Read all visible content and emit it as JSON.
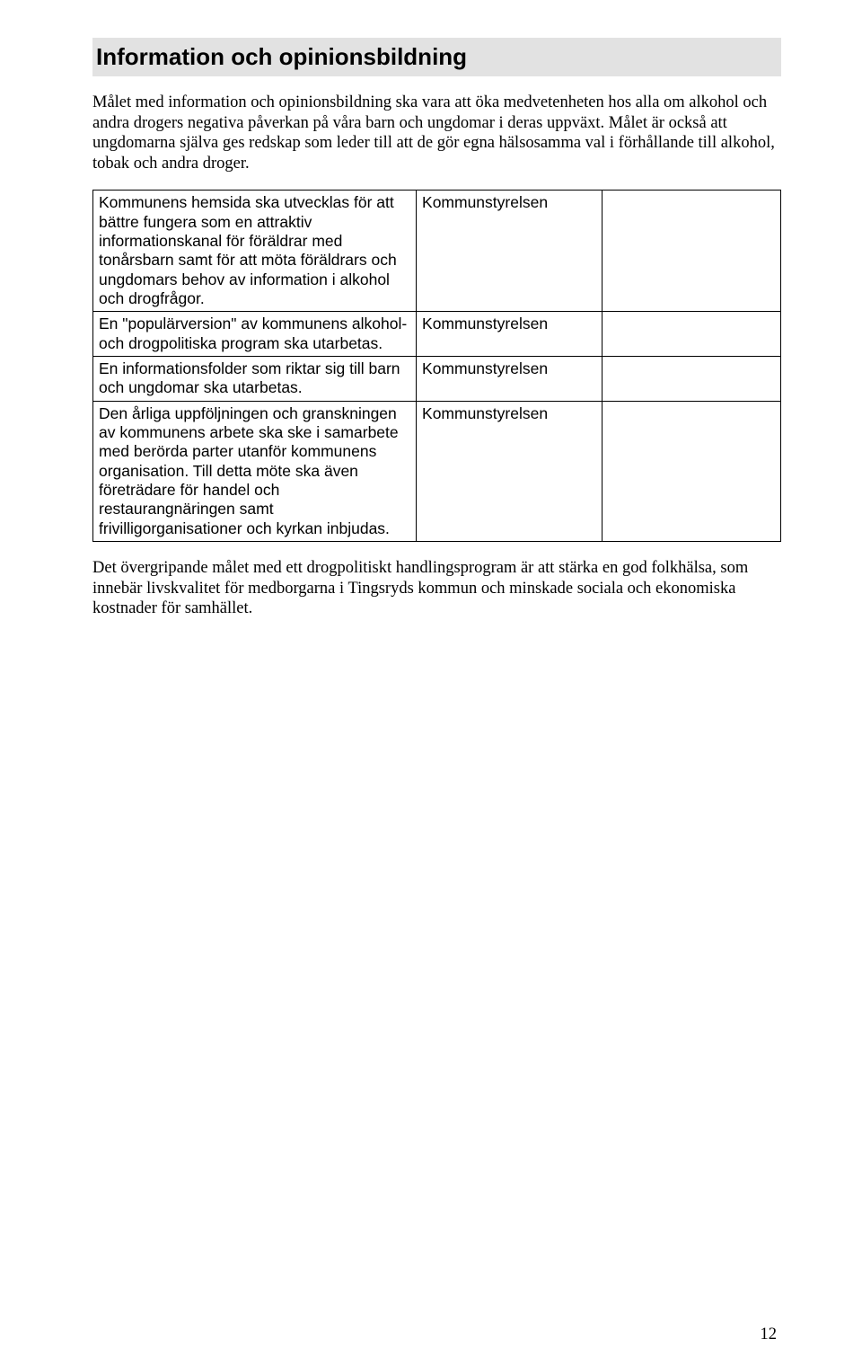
{
  "banner_title": "Information och opinionsbildning",
  "intro_text": "Målet med information och opinionsbildning ska vara att öka medvetenheten hos alla om alkohol och andra drogers negativa påverkan på våra barn och ungdomar i deras uppväxt. Målet är också att ungdomarna själva ges redskap som leder till att de gör egna hälsosamma val i förhållande till alkohol, tobak och andra droger.",
  "table": {
    "rows": [
      {
        "action": "Kommunens hemsida ska utvecklas för att bättre fungera som en attraktiv informationskanal för föräldrar med tonårsbarn samt för att möta föräldrars och ungdomars behov av information i alkohol och drogfrågor.",
        "responsible": "Kommunstyrelsen",
        "c3": ""
      },
      {
        "action": "En \"populärversion\" av kommunens alkohol- och drogpolitiska program ska utarbetas.",
        "responsible": "Kommunstyrelsen",
        "c3": ""
      },
      {
        "action": "En informationsfolder som riktar sig till barn och ungdomar ska utarbetas.",
        "responsible": "Kommunstyrelsen",
        "c3": ""
      },
      {
        "action": "Den årliga uppföljningen och granskningen av kommunens arbete ska ske i samarbete med berörda parter utanför kommunens organisation. Till detta möte ska även företrädare för handel och restaurangnäringen samt frivilligorganisationer och kyrkan inbjudas.",
        "responsible": "Kommunstyrelsen",
        "c3": ""
      }
    ]
  },
  "closing_text": "Det övergripande målet med ett drogpolitiskt handlingsprogram är att stärka en god folkhälsa, som innebär livskvalitet för medborgarna i Tingsryds kommun och minskade sociala och ekonomiska kostnader för samhället.",
  "page_number": "12",
  "colors": {
    "banner_bg": "#e2e2e2",
    "text": "#000000",
    "page_bg": "#ffffff",
    "border": "#000000"
  },
  "fonts": {
    "heading_family": "Arial",
    "heading_size_pt": 20,
    "heading_weight": "bold",
    "body_family": "Times New Roman",
    "body_size_pt": 14,
    "table_family": "Arial",
    "table_size_pt": 13
  }
}
